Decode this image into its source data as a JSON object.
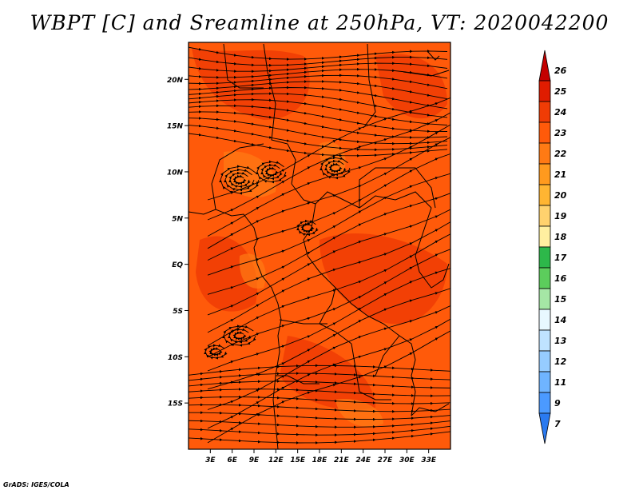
{
  "title": "WBPT [C] and Sreamline at 250hPa, VT: 2020042200",
  "footer": "GrADS: IGES/COLA",
  "map": {
    "lon_range": [
      0,
      36
    ],
    "lat_range": [
      -20,
      24
    ],
    "lat_ticks": [
      {
        "value": 20,
        "label": "20N"
      },
      {
        "value": 15,
        "label": "15N"
      },
      {
        "value": 10,
        "label": "10N"
      },
      {
        "value": 5,
        "label": "5N"
      },
      {
        "value": 0,
        "label": "EQ"
      },
      {
        "value": -5,
        "label": "5S"
      },
      {
        "value": -10,
        "label": "10S"
      },
      {
        "value": -15,
        "label": "15S"
      }
    ],
    "lon_ticks": [
      {
        "value": 3,
        "label": "3E"
      },
      {
        "value": 6,
        "label": "6E"
      },
      {
        "value": 9,
        "label": "9E"
      },
      {
        "value": 12,
        "label": "12E"
      },
      {
        "value": 15,
        "label": "15E"
      },
      {
        "value": 18,
        "label": "18E"
      },
      {
        "value": 21,
        "label": "21E"
      },
      {
        "value": 24,
        "label": "24E"
      },
      {
        "value": 27,
        "label": "27E"
      },
      {
        "value": 30,
        "label": "30E"
      },
      {
        "value": 33,
        "label": "33E"
      }
    ],
    "field_colors": {
      "level_23": "#ff5a0a",
      "level_24": "#f03c05",
      "level_22": "#ff7a14"
    },
    "boundary_color": "#000000",
    "streamline_color": "#000000"
  },
  "colorbar": {
    "labels": [
      "26",
      "25",
      "24",
      "23",
      "22",
      "21",
      "20",
      "19",
      "18",
      "17",
      "16",
      "15",
      "14",
      "13",
      "12",
      "11",
      "9",
      "7"
    ],
    "colors": [
      "#c40000",
      "#e01c00",
      "#f03c05",
      "#ff5a0a",
      "#ff7a14",
      "#ff9a1e",
      "#ffb532",
      "#ffd26e",
      "#ffefa0",
      "#2db84a",
      "#5ccd5c",
      "#a5e6a5",
      "#e8f8ff",
      "#bfe3ff",
      "#96ccff",
      "#6fb4ff",
      "#4b9aff",
      "#2a7af0"
    ]
  }
}
